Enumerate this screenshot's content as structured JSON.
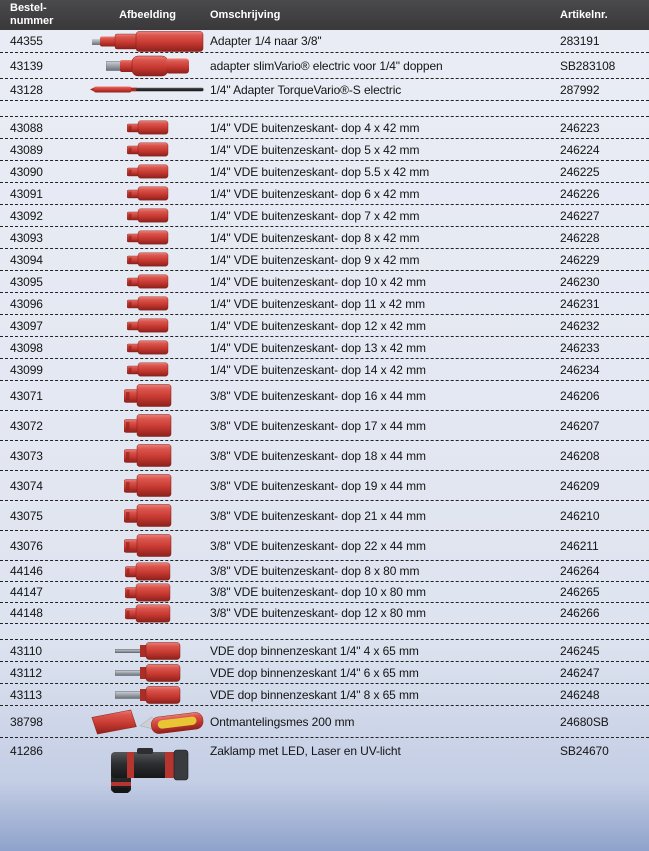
{
  "header": {
    "order_line1": "Bestel-",
    "order_line2": "nummer",
    "image": "Afbeelding",
    "description": "Omschrijving",
    "article": "Artikelnr."
  },
  "colors": {
    "header_bg": "#3d3d3f",
    "header_text": "#ffffff",
    "row_text": "#141414",
    "separator": "#222222",
    "product_red": "#c93b33",
    "product_gray": "#9aa0a7",
    "product_dark": "#2d2e31",
    "background_top": "#eaedf5",
    "background_bottom": "#8ea2cb"
  },
  "table": {
    "groups": [
      {
        "gap_after": true,
        "rows": [
          {
            "order": "44355",
            "icon": "adapter-quarter-to-three-eighth",
            "description": "Adapter 1/4  naar 3/8\"",
            "article": "283191"
          },
          {
            "order": "43139",
            "icon": "slimvario-adapter",
            "description": "adapter slimVario® electric voor 1/4\" doppen",
            "article": "SB283108"
          },
          {
            "order": "43128",
            "icon": "torquevario-rod",
            "description": "1/4\" Adapter TorqueVario®-S electric",
            "article": "287992"
          }
        ]
      },
      {
        "gap_after": false,
        "rows": [
          {
            "order": "43088",
            "icon": "vde-socket-42",
            "description": "1/4\" VDE buitenzeskant- dop 4 x 42 mm",
            "article": "246223"
          },
          {
            "order": "43089",
            "icon": "vde-socket-42",
            "description": "1/4\" VDE buitenzeskant- dop 5 x 42 mm",
            "article": "246224"
          },
          {
            "order": "43090",
            "icon": "vde-socket-42",
            "description": "1/4\" VDE buitenzeskant- dop 5.5 x 42 mm",
            "article": "246225"
          },
          {
            "order": "43091",
            "icon": "vde-socket-42",
            "description": "1/4\" VDE buitenzeskant- dop 6 x 42 mm",
            "article": "246226"
          },
          {
            "order": "43092",
            "icon": "vde-socket-42",
            "description": "1/4\" VDE buitenzeskant- dop 7 x 42 mm",
            "article": "246227"
          },
          {
            "order": "43093",
            "icon": "vde-socket-42",
            "description": "1/4\" VDE buitenzeskant- dop 8 x 42 mm",
            "article": "246228"
          },
          {
            "order": "43094",
            "icon": "vde-socket-42",
            "description": "1/4\" VDE buitenzeskant- dop 9 x 42 mm",
            "article": "246229"
          },
          {
            "order": "43095",
            "icon": "vde-socket-42",
            "description": "1/4\" VDE buitenzeskant- dop 10 x 42 mm",
            "article": "246230"
          },
          {
            "order": "43096",
            "icon": "vde-socket-42",
            "description": "1/4\" VDE buitenzeskant- dop 11 x 42 mm",
            "article": "246231"
          },
          {
            "order": "43097",
            "icon": "vde-socket-42",
            "description": "1/4\" VDE buitenzeskant- dop 12 x 42 mm",
            "article": "246232"
          },
          {
            "order": "43098",
            "icon": "vde-socket-42",
            "description": "1/4\" VDE buitenzeskant- dop 13 x 42 mm",
            "article": "246233"
          },
          {
            "order": "43099",
            "icon": "vde-socket-42",
            "description": "1/4\" VDE buitenzeskant- dop 14 x 42 mm",
            "article": "246234"
          }
        ]
      },
      {
        "gap_after": false,
        "rows": [
          {
            "order": "43071",
            "icon": "vde-socket-44",
            "description": "3/8\" VDE buitenzeskant- dop 16 x 44 mm",
            "article": "246206"
          },
          {
            "order": "43072",
            "icon": "vde-socket-44",
            "description": "3/8\" VDE buitenzeskant- dop 17 x 44 mm",
            "article": "246207"
          },
          {
            "order": "43073",
            "icon": "vde-socket-44",
            "description": "3/8\" VDE buitenzeskant- dop 18 x 44 mm",
            "article": "246208"
          },
          {
            "order": "43074",
            "icon": "vde-socket-44",
            "description": "3/8\" VDE buitenzeskant- dop 19 x 44 mm",
            "article": "246209"
          },
          {
            "order": "43075",
            "icon": "vde-socket-44",
            "description": "3/8\" VDE buitenzeskant- dop 21 x 44 mm",
            "article": "246210"
          },
          {
            "order": "43076",
            "icon": "vde-socket-44",
            "description": "3/8\" VDE buitenzeskant- dop 22 x 44 mm",
            "article": "246211"
          }
        ]
      },
      {
        "gap_after": true,
        "rows": [
          {
            "order": "44146",
            "icon": "vde-socket-80",
            "description": "3/8\" VDE buitenzeskant- dop 8 x 80 mm",
            "article": "246264"
          },
          {
            "order": "44147",
            "icon": "vde-socket-80",
            "description": "3/8\" VDE buitenzeskant- dop 10 x 80 mm",
            "article": "246265"
          },
          {
            "order": "44148",
            "icon": "vde-socket-80",
            "description": "3/8\" VDE buitenzeskant- dop 12 x 80 mm",
            "article": "246266"
          }
        ]
      },
      {
        "gap_after": false,
        "rows": [
          {
            "order": "43110",
            "icon": "vde-hex-socket-4",
            "description": "VDE dop binnenzeskant  1/4\" 4 x 65 mm",
            "article": "246245"
          },
          {
            "order": "43112",
            "icon": "vde-hex-socket-6",
            "description": "VDE dop binnenzeskant  1/4\" 6 x 65 mm",
            "article": "246247"
          },
          {
            "order": "43113",
            "icon": "vde-hex-socket-8",
            "description": "VDE dop binnenzeskant  1/4\" 8 x 65 mm",
            "article": "246248"
          }
        ]
      },
      {
        "gap_after": false,
        "rows": [
          {
            "order": "38798",
            "icon": "stripping-knife",
            "description": "Ontmantelingsmes  200 mm",
            "article": "24680SB"
          }
        ]
      },
      {
        "gap_after": false,
        "rows": [
          {
            "order": "41286",
            "icon": "led-flashlight",
            "description": "Zaklamp met  LED, Laser en UV-licht",
            "article": "SB24670"
          }
        ]
      }
    ]
  }
}
